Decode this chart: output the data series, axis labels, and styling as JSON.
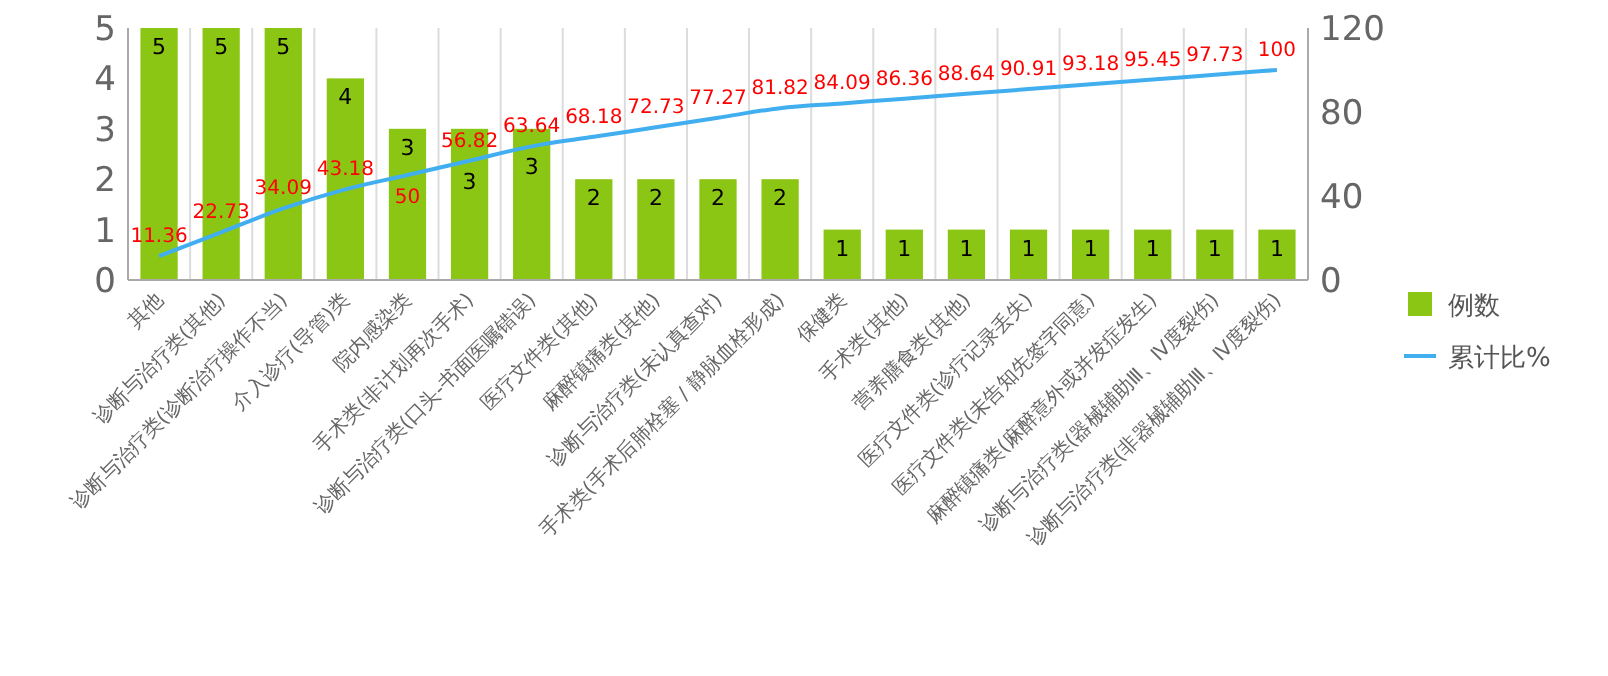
{
  "chart_data": {
    "type": "bar",
    "categories": [
      "其他",
      "诊断与治疗类(其他)",
      "诊断与治疗类(诊断治疗操作不当)",
      "介入诊疗(导管)类",
      "院内感染类",
      "手术类(非计划再次手术)",
      "诊断与治疗类(口头-书面医嘱错误)",
      "医疗文件类(其他)",
      "麻醉镇痛类(其他)",
      "诊断与治疗类(未认真查对)",
      "手术类(手术后肺栓塞 / 静脉血栓形成)",
      "保健类",
      "手术类(其他)",
      "营养膳食类(其他)",
      "医疗文件类(诊疗记录丢失)",
      "医疗文件类(未告知先签字同意)",
      "麻醉镇痛类(麻醉意外或并发症发生)",
      "诊断与治疗类(器械辅助Ⅲ、Ⅳ度裂伤)",
      "诊断与治疗类(非器械辅助Ⅲ、Ⅳ度裂伤)"
    ],
    "series": [
      {
        "name": "例数",
        "color": "#8cc614",
        "values": [
          5,
          5,
          5,
          4,
          3,
          3,
          3,
          2,
          2,
          2,
          2,
          1,
          1,
          1,
          1,
          1,
          1,
          1,
          1
        ]
      },
      {
        "name": "累计比%",
        "type": "line",
        "axis": "y2",
        "color": "#41aef0",
        "values": [
          11.36,
          22.73,
          34.09,
          43.18,
          50,
          56.82,
          63.64,
          68.18,
          72.73,
          77.27,
          81.82,
          84.09,
          86.36,
          88.64,
          90.91,
          93.18,
          95.45,
          97.73,
          100
        ]
      }
    ],
    "ylim": [
      0,
      5
    ],
    "yticks": [
      0,
      1,
      2,
      3,
      4,
      5
    ],
    "y2lim": [
      0,
      120
    ],
    "y2ticks": [
      0,
      40,
      80,
      120
    ],
    "data_labels": true,
    "grid": "x",
    "legend": "right",
    "marker": "none"
  }
}
